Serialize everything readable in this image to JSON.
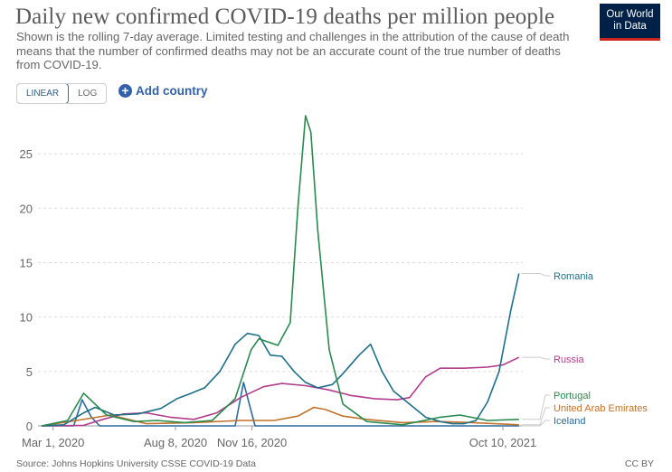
{
  "header": {
    "title": "Daily new confirmed COVID-19 deaths per million people",
    "subtitle": "Shown is the rolling 7-day average. Limited testing and challenges in the attribution of the cause of death means that the number of confirmed deaths may not be an accurate count of the true number of deaths from COVID-19."
  },
  "logo": {
    "line1": "Our World",
    "line2": "in Data"
  },
  "controls": {
    "linear_label": "LINEAR",
    "log_label": "LOG",
    "add_country_label": "Add country"
  },
  "footer": {
    "source": "Source: Johns Hopkins University CSSE COVID-19 Data",
    "license": "CC BY"
  },
  "chart_data": {
    "type": "line",
    "title": "Daily new confirmed COVID-19 deaths per million people",
    "xlabel": "",
    "ylabel": "",
    "x_tick_labels": [
      "Mar 1, 2020",
      "Aug 8, 2020",
      "Nov 16, 2020",
      "Oct 10, 2021"
    ],
    "x_ticks": [
      "2020-03-01",
      "2020-08-08",
      "2020-11-16",
      "2021-10-10"
    ],
    "xlim": [
      "2020-02-15",
      "2021-11-05"
    ],
    "ylim": [
      0,
      28.5
    ],
    "y_ticks": [
      0,
      5,
      10,
      15,
      20,
      25
    ],
    "grid": "horizontal dashed",
    "legend": "right-end labels",
    "series": [
      {
        "name": "Romania",
        "color": "#1f6f87",
        "x": [
          "2020-02-15",
          "2020-03-15",
          "2020-04-10",
          "2020-04-25",
          "2020-05-20",
          "2020-06-20",
          "2020-07-20",
          "2020-08-10",
          "2020-08-25",
          "2020-09-15",
          "2020-10-05",
          "2020-10-25",
          "2020-11-10",
          "2020-11-25",
          "2020-12-10",
          "2020-12-25",
          "2021-01-10",
          "2021-01-25",
          "2021-02-10",
          "2021-03-01",
          "2021-03-15",
          "2021-04-05",
          "2021-04-20",
          "2021-05-05",
          "2021-05-20",
          "2021-06-10",
          "2021-07-01",
          "2021-07-20",
          "2021-08-05",
          "2021-08-20",
          "2021-09-05",
          "2021-09-20",
          "2021-10-05",
          "2021-10-20",
          "2021-10-31"
        ],
        "y": [
          0,
          0.1,
          1.2,
          1.7,
          1.0,
          1.1,
          1.6,
          2.5,
          2.9,
          3.5,
          5.0,
          7.5,
          8.5,
          8.3,
          6.5,
          6.4,
          5.0,
          4.0,
          3.5,
          3.8,
          4.8,
          6.5,
          7.5,
          5.0,
          3.2,
          2.0,
          0.8,
          0.4,
          0.2,
          0.2,
          0.5,
          2.2,
          5.0,
          10.5,
          14.0
        ]
      },
      {
        "name": "Russia",
        "color": "#b13d8b",
        "x": [
          "2020-02-15",
          "2020-04-10",
          "2020-05-05",
          "2020-06-01",
          "2020-07-01",
          "2020-08-01",
          "2020-09-01",
          "2020-10-01",
          "2020-11-01",
          "2020-12-01",
          "2020-12-25",
          "2021-01-25",
          "2021-02-25",
          "2021-03-25",
          "2021-04-25",
          "2021-05-25",
          "2021-06-10",
          "2021-07-01",
          "2021-07-20",
          "2021-08-20",
          "2021-09-20",
          "2021-10-10",
          "2021-10-31"
        ],
        "y": [
          0,
          0.05,
          0.6,
          1.1,
          1.2,
          0.8,
          0.6,
          1.2,
          2.6,
          3.6,
          3.9,
          3.7,
          3.3,
          2.8,
          2.5,
          2.4,
          2.6,
          4.5,
          5.3,
          5.3,
          5.4,
          5.6,
          6.3
        ]
      },
      {
        "name": "Portugal",
        "color": "#2a8a4e",
        "x": [
          "2020-02-15",
          "2020-03-20",
          "2020-04-10",
          "2020-05-10",
          "2020-06-15",
          "2020-07-15",
          "2020-08-20",
          "2020-09-25",
          "2020-10-25",
          "2020-11-15",
          "2020-11-25",
          "2020-12-20",
          "2021-01-05",
          "2021-01-15",
          "2021-01-25",
          "2021-02-01",
          "2021-02-10",
          "2021-02-25",
          "2021-03-15",
          "2021-04-15",
          "2021-06-01",
          "2021-07-20",
          "2021-08-15",
          "2021-09-20",
          "2021-10-31"
        ],
        "y": [
          0,
          0.5,
          3.0,
          1.0,
          0.4,
          0.5,
          0.3,
          0.5,
          2.5,
          7.0,
          8.0,
          7.4,
          9.5,
          20.0,
          28.5,
          27.0,
          18.0,
          7.0,
          2.0,
          0.4,
          0.1,
          0.8,
          1.0,
          0.5,
          0.6
        ]
      },
      {
        "name": "United Arab Emirates",
        "color": "#c0712a",
        "x": [
          "2020-02-15",
          "2020-04-01",
          "2020-05-15",
          "2020-07-01",
          "2020-09-01",
          "2020-11-01",
          "2020-12-15",
          "2021-01-15",
          "2021-02-05",
          "2021-02-20",
          "2021-03-15",
          "2021-04-15",
          "2021-06-01",
          "2021-07-15",
          "2021-09-01",
          "2021-10-31"
        ],
        "y": [
          0,
          0.5,
          1.0,
          0.2,
          0.3,
          0.5,
          0.5,
          0.9,
          1.7,
          1.5,
          0.9,
          0.6,
          0.3,
          0.4,
          0.3,
          0.1
        ]
      },
      {
        "name": "Iceland",
        "color": "#2b6a9f",
        "x": [
          "2020-02-15",
          "2020-03-28",
          "2020-04-08",
          "2020-04-20",
          "2020-05-01",
          "2020-10-10",
          "2020-10-25",
          "2020-11-05",
          "2020-11-20",
          "2021-10-31"
        ],
        "y": [
          0,
          0,
          2.4,
          0.8,
          0,
          0,
          0,
          4.0,
          0,
          0
        ]
      }
    ]
  }
}
